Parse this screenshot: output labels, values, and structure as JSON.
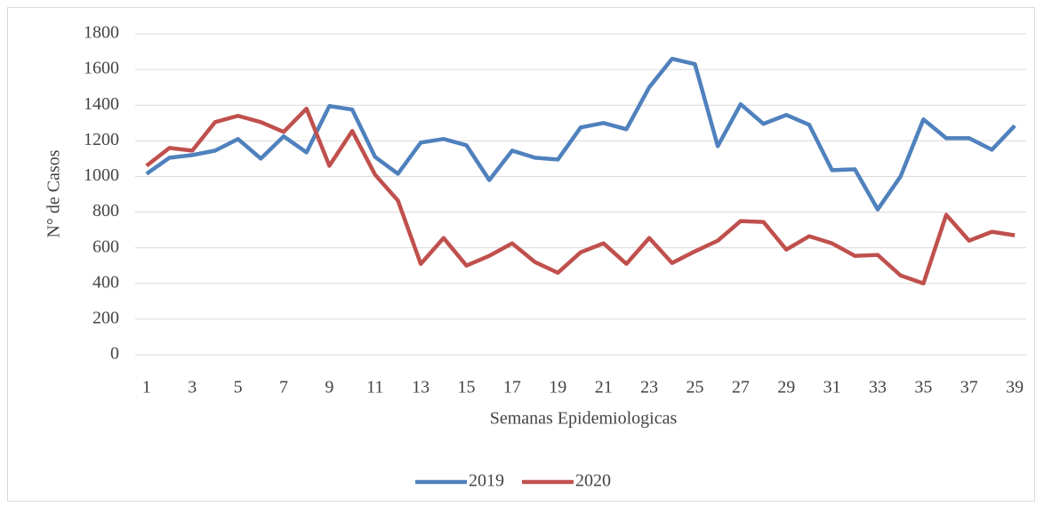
{
  "chart_data": {
    "type": "line",
    "x_label": "Semanas Epidemiologicas",
    "y_label": "N° de Casos",
    "categories": [
      "1",
      null,
      "3",
      null,
      "5",
      null,
      "7",
      null,
      "9",
      null,
      "11",
      null,
      "13",
      null,
      "15",
      null,
      "17",
      null,
      "19",
      null,
      "21",
      null,
      "23",
      null,
      "25",
      null,
      "27",
      null,
      "29",
      null,
      "31",
      null,
      "33",
      null,
      "35",
      null,
      "37",
      null,
      "39"
    ],
    "series": [
      {
        "name": "2019",
        "color": "#4f81bd",
        "values": [
          1015,
          1105,
          1120,
          1145,
          1210,
          1100,
          1225,
          1135,
          1395,
          1375,
          1110,
          1015,
          1190,
          1210,
          1175,
          980,
          1145,
          1105,
          1095,
          1275,
          1300,
          1265,
          1500,
          1660,
          1630,
          1170,
          1405,
          1295,
          1345,
          1290,
          1035,
          1040,
          815,
          1000,
          1320,
          1215,
          1215,
          1150,
          1285
        ]
      },
      {
        "name": "2020",
        "color": "#c0504d",
        "values": [
          1060,
          1160,
          1145,
          1305,
          1340,
          1305,
          1250,
          1380,
          1060,
          1255,
          1010,
          865,
          510,
          655,
          500,
          555,
          625,
          520,
          460,
          575,
          625,
          510,
          655,
          515,
          580,
          640,
          750,
          745,
          590,
          665,
          625,
          555,
          560,
          445,
          400,
          785,
          640,
          690,
          670
        ]
      }
    ],
    "ylim": [
      0,
      1800
    ],
    "yticks": [
      0,
      200,
      400,
      600,
      800,
      1000,
      1200,
      1400,
      1600,
      1800
    ],
    "grid": true,
    "legend": "bottom"
  }
}
